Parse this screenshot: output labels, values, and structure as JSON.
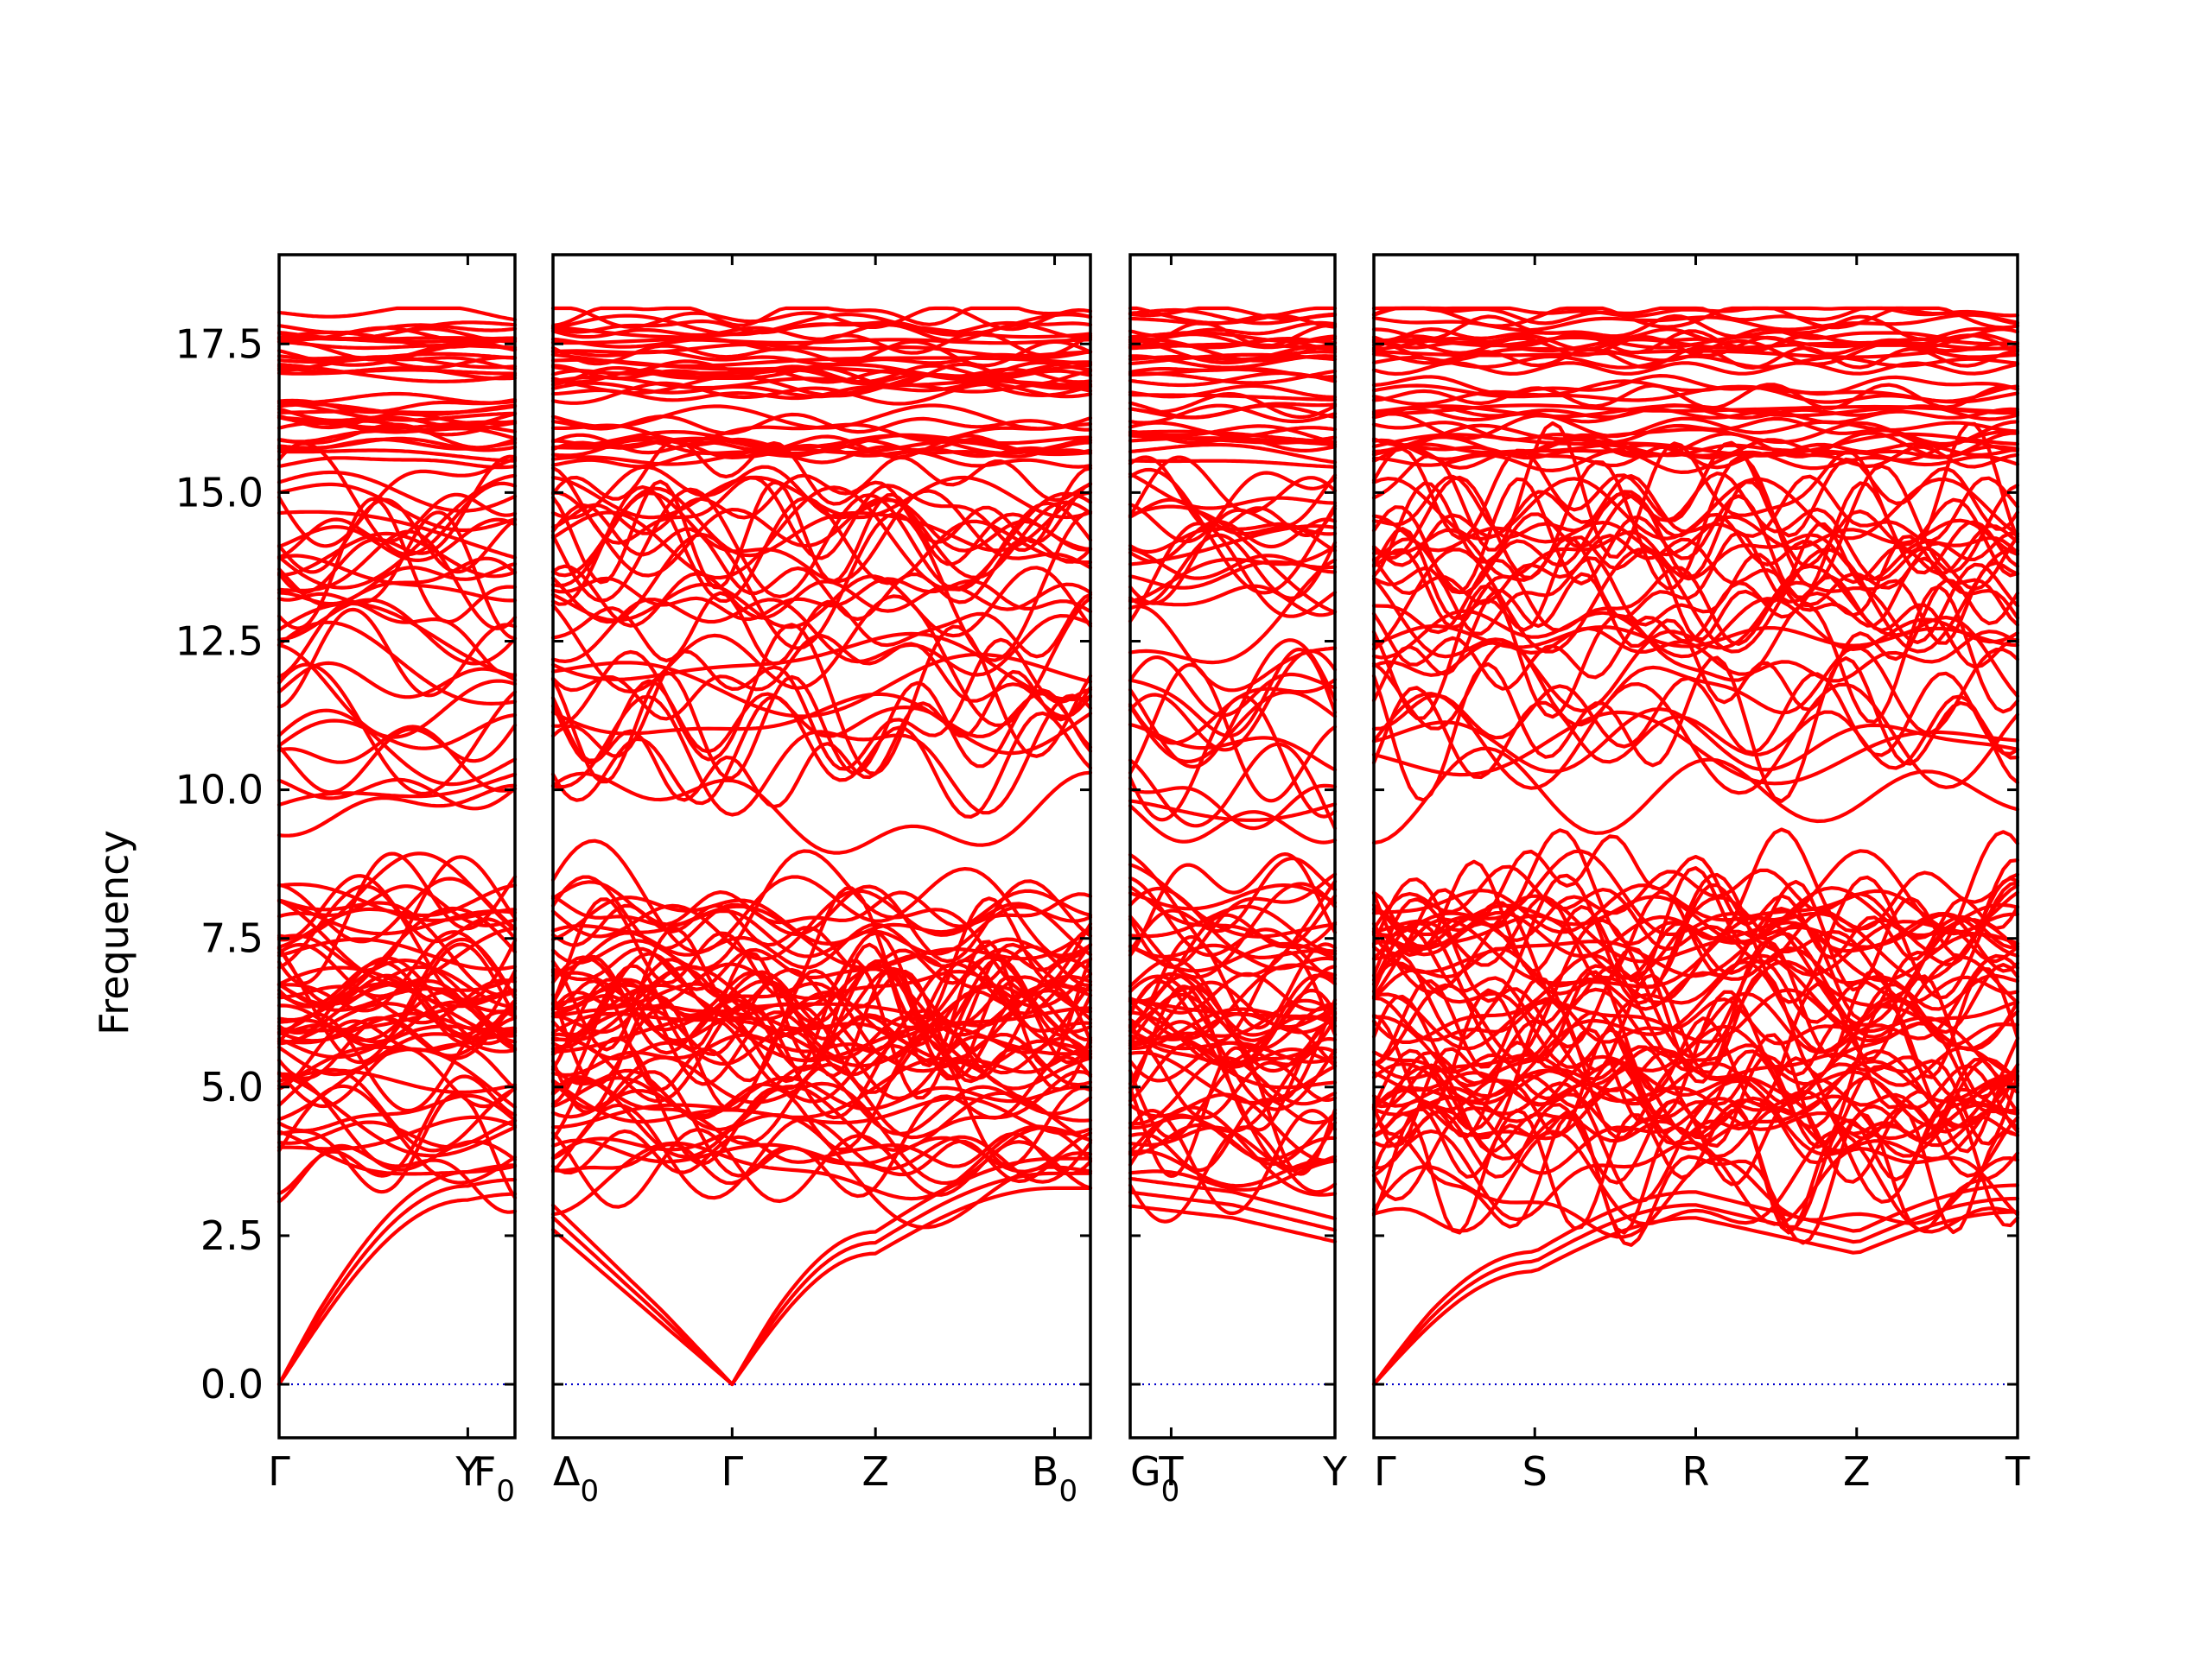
{
  "chart_data": {
    "type": "line",
    "xlabel": "",
    "ylabel": "Frequency",
    "ylim": [
      -0.9,
      19.0
    ],
    "yticks": [
      "0.0",
      "2.5",
      "5.0",
      "7.5",
      "10.0",
      "12.5",
      "15.0",
      "17.5"
    ],
    "line_color": "#ff0000",
    "zero_line_color": "#0000cc",
    "grid": false,
    "legend": "none",
    "n_bands": 120,
    "segments": [
      {
        "x_range": [
          0,
          1
        ],
        "ticks": [
          {
            "pos": 0.0,
            "label": "Γ"
          },
          {
            "pos": 0.8,
            "label": "Y"
          },
          {
            "pos": 1.0,
            "label": "F",
            "subscript": "0"
          }
        ],
        "acoustic": [
          [
            0,
            0.0
          ],
          [
            0.8,
            3.1
          ],
          [
            1.0,
            3.2
          ]
        ],
        "band_range": [
          2.4,
          18.1
        ]
      },
      {
        "x_range": [
          0,
          3
        ],
        "ticks": [
          {
            "pos": 0.0,
            "label": "Δ",
            "subscript": "0"
          },
          {
            "pos": 1.0,
            "label": "Γ"
          },
          {
            "pos": 1.8,
            "label": "Z"
          },
          {
            "pos": 2.8,
            "label": "B",
            "subscript": "0"
          }
        ],
        "acoustic": [
          [
            0,
            2.6
          ],
          [
            1.0,
            0.0
          ],
          [
            1.8,
            2.2
          ],
          [
            2.8,
            3.3
          ]
        ],
        "band_range": [
          2.2,
          18.1
        ]
      },
      {
        "x_range": [
          0,
          1
        ],
        "ticks": [
          {
            "pos": 0.0,
            "label": "G",
            "subscript": "0"
          },
          {
            "pos": 0.2,
            "label": "T"
          },
          {
            "pos": 1.0,
            "label": "Y"
          }
        ],
        "acoustic": [
          [
            0,
            3.0
          ],
          [
            0.5,
            2.8
          ],
          [
            1.0,
            2.4
          ]
        ],
        "band_range": [
          2.3,
          18.1
        ]
      },
      {
        "x_range": [
          0,
          4
        ],
        "ticks": [
          {
            "pos": 0.0,
            "label": "Γ"
          },
          {
            "pos": 1.0,
            "label": "S"
          },
          {
            "pos": 2.0,
            "label": "R"
          },
          {
            "pos": 3.0,
            "label": "Z"
          },
          {
            "pos": 4.0,
            "label": "T"
          }
        ],
        "acoustic": [
          [
            0,
            0.0
          ],
          [
            1.0,
            1.9
          ],
          [
            2.0,
            2.8
          ],
          [
            3.0,
            2.2
          ],
          [
            4.0,
            2.9
          ]
        ],
        "band_range": [
          1.9,
          18.1
        ]
      }
    ]
  }
}
